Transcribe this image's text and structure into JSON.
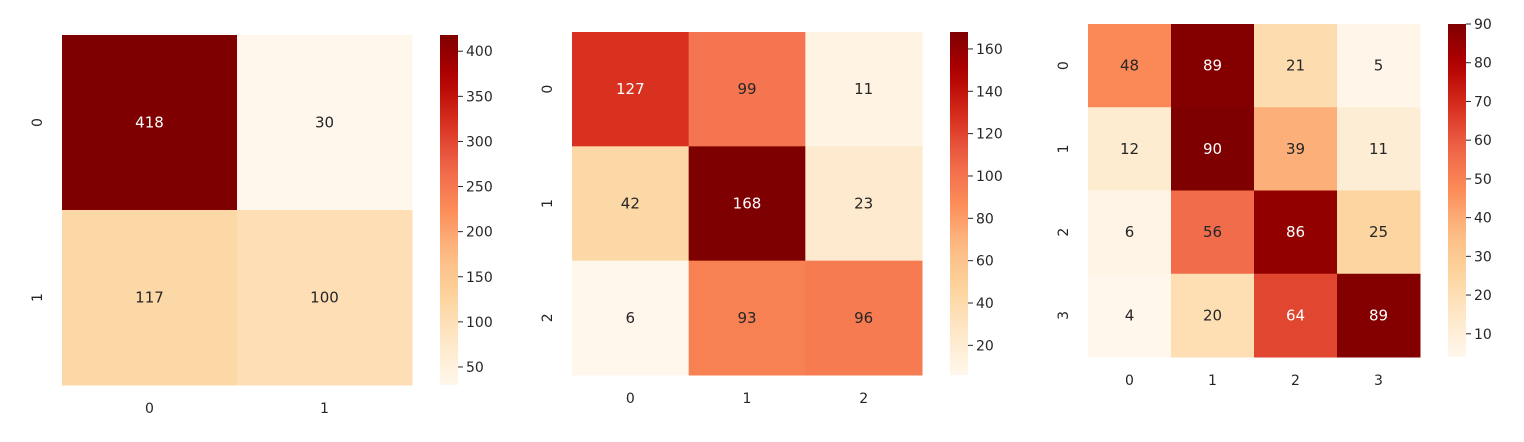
{
  "chart_data": [
    {
      "type": "heatmap",
      "colormap": "OrRd",
      "rows": [
        "0",
        "1"
      ],
      "cols": [
        "0",
        "1"
      ],
      "values": [
        [
          418,
          30
        ],
        [
          117,
          100
        ]
      ],
      "vmin": 30,
      "vmax": 418,
      "colorbar_ticks": [
        "400",
        "350",
        "300",
        "250",
        "200",
        "150",
        "100",
        "50"
      ]
    },
    {
      "type": "heatmap",
      "colormap": "OrRd",
      "rows": [
        "0",
        "1",
        "2"
      ],
      "cols": [
        "0",
        "1",
        "2"
      ],
      "values": [
        [
          127,
          99,
          11
        ],
        [
          42,
          168,
          23
        ],
        [
          6,
          93,
          96
        ]
      ],
      "vmin": 6,
      "vmax": 168,
      "colorbar_ticks": [
        "160",
        "140",
        "120",
        "100",
        "80",
        "60",
        "40",
        "20"
      ]
    },
    {
      "type": "heatmap",
      "colormap": "OrRd",
      "rows": [
        "0",
        "1",
        "2",
        "3"
      ],
      "cols": [
        "0",
        "1",
        "2",
        "3"
      ],
      "values": [
        [
          48,
          89,
          21,
          5
        ],
        [
          12,
          90,
          39,
          11
        ],
        [
          6,
          56,
          86,
          25
        ],
        [
          4,
          20,
          64,
          89
        ]
      ],
      "vmin": 4,
      "vmax": 90,
      "colorbar_ticks": [
        "90",
        "80",
        "70",
        "60",
        "50",
        "40",
        "30",
        "20",
        "10"
      ]
    }
  ]
}
